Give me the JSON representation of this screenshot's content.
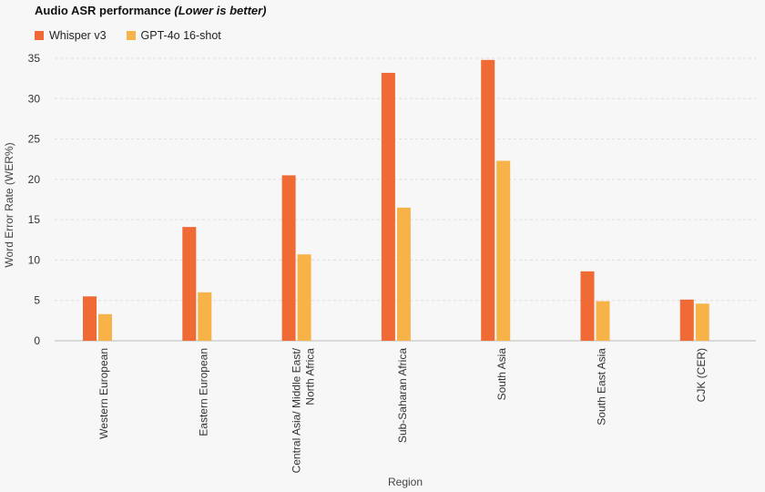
{
  "title": {
    "main": "Audio ASR performance",
    "note": "(Lower is better)"
  },
  "colors": {
    "whisper": "#f06a35",
    "gpt4o": "#f7b348",
    "grid": "#dedede",
    "background": "#f7f7f7"
  },
  "chart_data": {
    "type": "bar",
    "title": "Audio ASR performance (Lower is better)",
    "xlabel": "Region",
    "ylabel": "Word Error Rate (WER%)",
    "ylim": [
      0,
      35
    ],
    "yticks": [
      0,
      5,
      10,
      15,
      20,
      25,
      30,
      35
    ],
    "grid": "horizontal dashed",
    "legend_position": "top-left",
    "categories": [
      [
        "Western European"
      ],
      [
        "Eastern European"
      ],
      [
        "Central Asia/ Middle East/",
        "North Africa"
      ],
      [
        "Sub-Saharan Africa"
      ],
      [
        "South Asia"
      ],
      [
        "South East Asia"
      ],
      [
        "CJK (CER)"
      ]
    ],
    "series": [
      {
        "name": "Whisper v3",
        "color": "#f06a35",
        "values": [
          5.5,
          14.1,
          20.5,
          33.2,
          34.8,
          8.6,
          5.1
        ]
      },
      {
        "name": "GPT-4o 16-shot",
        "color": "#f7b348",
        "values": [
          3.3,
          6.0,
          10.7,
          16.5,
          22.3,
          4.9,
          4.6
        ]
      }
    ]
  }
}
